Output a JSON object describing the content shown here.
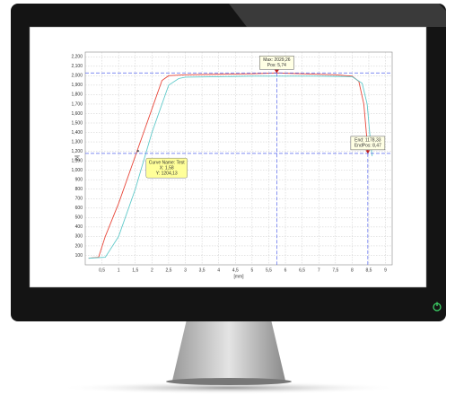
{
  "chart_data": {
    "type": "line",
    "x_label": "[mm]",
    "y_label": "[N]",
    "xlim": [
      0,
      9.2
    ],
    "ylim": [
      0,
      2250
    ],
    "xticks": [
      {
        "value": 0.5,
        "label": "0,5"
      },
      1,
      {
        "value": 1.5,
        "label": "1,5"
      },
      2,
      {
        "value": 2.5,
        "label": "2,5"
      },
      3,
      {
        "value": 3.5,
        "label": "3,5"
      },
      4,
      {
        "value": 4.5,
        "label": "4,5"
      },
      5,
      {
        "value": 5.5,
        "label": "5,5"
      },
      6,
      {
        "value": 6.5,
        "label": "6,5"
      },
      7,
      {
        "value": 7.5,
        "label": "7,5"
      },
      8,
      {
        "value": 8.5,
        "label": "8,5"
      },
      9
    ],
    "yticks": [
      100,
      200,
      300,
      400,
      500,
      600,
      700,
      800,
      900,
      {
        "value": 1000,
        "label": "1,000"
      },
      {
        "value": 1100,
        "label": "1,100"
      },
      {
        "value": 1200,
        "label": "1,200"
      },
      {
        "value": 1300,
        "label": "1,300"
      },
      {
        "value": 1400,
        "label": "1,400"
      },
      {
        "value": 1500,
        "label": "1,500"
      },
      {
        "value": 1600,
        "label": "1,600"
      },
      {
        "value": 1700,
        "label": "1,700"
      },
      {
        "value": 1800,
        "label": "1,800"
      },
      {
        "value": 1900,
        "label": "1,900"
      },
      {
        "value": 2000,
        "label": "2,000"
      },
      {
        "value": 2100,
        "label": "2,100"
      },
      {
        "value": 2200,
        "label": "2,200"
      }
    ],
    "grid": true,
    "series": [
      {
        "color": "#e8473a",
        "x": [
          0.1,
          0.4,
          0.6,
          1,
          1.5,
          2,
          2.3,
          2.5,
          3,
          4,
          5,
          5.74,
          6.5,
          7.5,
          8,
          8.2,
          8.35,
          8.45,
          8.47
        ],
        "values": [
          70,
          80,
          300,
          650,
          1150,
          1650,
          1950,
          2000,
          2010,
          2015,
          2020,
          2029.26,
          2020,
          2010,
          1995,
          1940,
          1700,
          1300,
          1178.33
        ]
      },
      {
        "color": "#5fc9c9",
        "x": [
          0.1,
          0.6,
          1,
          1.5,
          2,
          2.5,
          2.8,
          3,
          4,
          5,
          6,
          7,
          8,
          8.3,
          8.45,
          8.55,
          8.6
        ],
        "values": [
          70,
          80,
          300,
          800,
          1400,
          1900,
          1970,
          1985,
          1990,
          1995,
          1995,
          1995,
          1990,
          1920,
          1700,
          1300,
          1150
        ]
      }
    ],
    "markers": [
      {
        "x": 5.74,
        "y": 2029.26,
        "lines": [
          "Max: 2029,26",
          "Pos: 5,74"
        ]
      },
      {
        "x": 8.47,
        "y": 1178.33,
        "lines": [
          "End: 1178,33",
          "EndPos: 8,47"
        ]
      }
    ],
    "tooltip": {
      "x": 1.58,
      "y": 1204.13,
      "lines": [
        "Curve Name: Test",
        "X: 1,58",
        "Y: 1204,13"
      ]
    }
  }
}
